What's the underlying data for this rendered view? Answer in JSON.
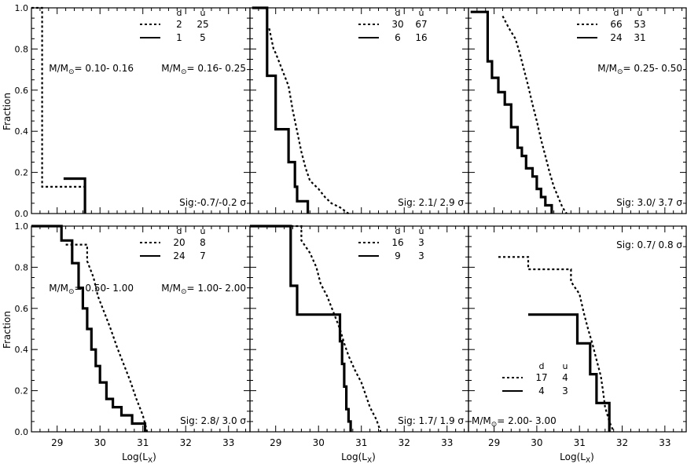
{
  "figure": {
    "ylabel": "Fraction",
    "xlabel": "Log(L",
    "xlabel_sub": "X",
    "xlabel_close": ")",
    "legend_header_d": "d",
    "legend_header_u": "u",
    "mass_prefix": "M/M",
    "sun_symbol": "⊙",
    "sigma_symbol": "σ",
    "x_ticks": [
      "29",
      "30",
      "31",
      "32",
      "33"
    ],
    "y_ticks": [
      "0.0",
      "0.2",
      "0.4",
      "0.6",
      "0.8",
      "1.0"
    ],
    "colors": {
      "line": "#000000",
      "background": "#ffffff"
    }
  },
  "chart_data": [
    {
      "type": "line",
      "panel": "top-left",
      "xlim": [
        28.4,
        33.5
      ],
      "ylim": [
        0,
        1
      ],
      "legend": [
        {
          "style": "dotted",
          "d": "2",
          "u": "25"
        },
        {
          "style": "solid",
          "d": "1",
          "u": "5"
        }
      ],
      "mass_range": "= 0.10- 0.16",
      "sig_text": "Sig:-0.7/-0.2",
      "series": [
        {
          "name": "dotted",
          "x": [
            28.4,
            28.65,
            28.65,
            29.65
          ],
          "y": [
            1.0,
            1.0,
            0.13,
            0.13
          ]
        },
        {
          "name": "solid",
          "x": [
            29.15,
            29.65,
            29.65
          ],
          "y": [
            0.17,
            0.17,
            0.0
          ]
        }
      ]
    },
    {
      "type": "line",
      "panel": "top-middle",
      "xlim": [
        28.4,
        33.5
      ],
      "ylim": [
        0,
        1
      ],
      "legend": [
        {
          "style": "dotted",
          "d": "30",
          "u": "67"
        },
        {
          "style": "solid",
          "d": "6",
          "u": "16"
        }
      ],
      "mass_range": "= 0.16- 0.25",
      "sig_text": "Sig: 2.1/ 2.9",
      "series": [
        {
          "name": "dotted",
          "x": [
            28.85,
            28.95,
            29.0,
            29.15,
            29.3,
            29.4,
            29.5,
            29.6,
            29.7,
            29.8,
            30.0,
            30.15,
            30.3,
            30.5,
            30.7
          ],
          "y": [
            0.9,
            0.8,
            0.78,
            0.7,
            0.62,
            0.5,
            0.4,
            0.3,
            0.22,
            0.16,
            0.12,
            0.08,
            0.05,
            0.03,
            0.0
          ]
        },
        {
          "name": "solid",
          "x": [
            28.45,
            28.8,
            28.8,
            29.0,
            29.0,
            29.3,
            29.3,
            29.45,
            29.45,
            29.5,
            29.5,
            29.75,
            29.75
          ],
          "y": [
            1.0,
            1.0,
            0.67,
            0.67,
            0.41,
            0.41,
            0.25,
            0.25,
            0.13,
            0.13,
            0.06,
            0.06,
            0.0
          ]
        }
      ]
    },
    {
      "type": "line",
      "panel": "top-right",
      "xlim": [
        28.4,
        33.5
      ],
      "ylim": [
        0,
        1
      ],
      "legend": [
        {
          "style": "dotted",
          "d": "66",
          "u": "53"
        },
        {
          "style": "solid",
          "d": "24",
          "u": "31"
        }
      ],
      "mass_range": "= 0.25- 0.50",
      "sig_text": "Sig: 3.0/ 3.7",
      "series": [
        {
          "name": "dotted",
          "x": [
            29.2,
            29.35,
            29.5,
            29.6,
            29.7,
            29.8,
            29.9,
            30.0,
            30.1,
            30.2,
            30.3,
            30.4,
            30.5,
            30.6,
            30.7
          ],
          "y": [
            0.96,
            0.9,
            0.85,
            0.78,
            0.7,
            0.62,
            0.53,
            0.45,
            0.36,
            0.28,
            0.2,
            0.13,
            0.08,
            0.03,
            0.0
          ]
        },
        {
          "name": "solid",
          "x": [
            28.45,
            28.85,
            28.85,
            28.95,
            28.95,
            29.1,
            29.1,
            29.25,
            29.25,
            29.4,
            29.4,
            29.55,
            29.55,
            29.65,
            29.65,
            29.75,
            29.75,
            29.9,
            29.9,
            30.0,
            30.0,
            30.1,
            30.1,
            30.2,
            30.2,
            30.35,
            30.35
          ],
          "y": [
            0.98,
            0.98,
            0.74,
            0.74,
            0.66,
            0.66,
            0.59,
            0.59,
            0.53,
            0.53,
            0.42,
            0.42,
            0.32,
            0.32,
            0.28,
            0.28,
            0.22,
            0.22,
            0.18,
            0.18,
            0.12,
            0.12,
            0.08,
            0.08,
            0.04,
            0.04,
            0.0
          ]
        }
      ]
    },
    {
      "type": "line",
      "panel": "bottom-left",
      "xlim": [
        28.4,
        33.5
      ],
      "ylim": [
        0,
        1
      ],
      "legend": [
        {
          "style": "dotted",
          "d": "20",
          "u": "8"
        },
        {
          "style": "solid",
          "d": "24",
          "u": "7"
        }
      ],
      "mass_range": "= 0.50- 1.00",
      "sig_text": "Sig: 2.8/ 3.0",
      "series": [
        {
          "name": "dotted",
          "x": [
            29.2,
            29.7,
            29.7,
            29.85,
            29.95,
            30.1,
            30.25,
            30.4,
            30.55,
            30.7,
            30.85,
            31.0,
            31.1
          ],
          "y": [
            0.91,
            0.91,
            0.83,
            0.75,
            0.66,
            0.58,
            0.5,
            0.41,
            0.33,
            0.25,
            0.16,
            0.08,
            0.0
          ]
        },
        {
          "name": "solid",
          "x": [
            28.4,
            29.1,
            29.1,
            29.35,
            29.35,
            29.5,
            29.5,
            29.6,
            29.6,
            29.7,
            29.7,
            29.8,
            29.8,
            29.9,
            29.9,
            30.0,
            30.0,
            30.15,
            30.15,
            30.3,
            30.3,
            30.5,
            30.5,
            30.75,
            30.75,
            31.05,
            31.05
          ],
          "y": [
            1.0,
            1.0,
            0.93,
            0.93,
            0.82,
            0.82,
            0.7,
            0.7,
            0.6,
            0.6,
            0.5,
            0.5,
            0.4,
            0.4,
            0.32,
            0.32,
            0.24,
            0.24,
            0.16,
            0.16,
            0.12,
            0.12,
            0.08,
            0.08,
            0.04,
            0.04,
            0.0
          ]
        }
      ]
    },
    {
      "type": "line",
      "panel": "bottom-middle",
      "xlim": [
        28.4,
        33.5
      ],
      "ylim": [
        0,
        1
      ],
      "legend": [
        {
          "style": "dotted",
          "d": "16",
          "u": "3"
        },
        {
          "style": "solid",
          "d": "9",
          "u": "3"
        }
      ],
      "mass_range": "= 1.00- 2.00",
      "sig_text": "Sig: 1.7/ 1.9",
      "series": [
        {
          "name": "dotted",
          "x": [
            29.25,
            29.6,
            29.6,
            29.8,
            29.95,
            30.05,
            30.2,
            30.35,
            30.5,
            30.6,
            30.7,
            30.85,
            31.0,
            31.1,
            31.2,
            31.35,
            31.45
          ],
          "y": [
            1.0,
            1.0,
            0.93,
            0.87,
            0.8,
            0.72,
            0.66,
            0.58,
            0.5,
            0.43,
            0.37,
            0.3,
            0.24,
            0.18,
            0.12,
            0.06,
            0.0
          ]
        },
        {
          "name": "solid",
          "x": [
            28.4,
            29.35,
            29.35,
            29.5,
            29.5,
            30.5,
            30.5,
            30.55,
            30.55,
            30.6,
            30.6,
            30.65,
            30.65,
            30.7,
            30.7,
            30.75,
            30.75
          ],
          "y": [
            1.0,
            1.0,
            0.71,
            0.71,
            0.57,
            0.57,
            0.44,
            0.44,
            0.33,
            0.33,
            0.22,
            0.22,
            0.11,
            0.11,
            0.05,
            0.05,
            0.0
          ]
        }
      ]
    },
    {
      "type": "line",
      "panel": "bottom-right",
      "xlim": [
        28.4,
        33.5
      ],
      "ylim": [
        0,
        1
      ],
      "legend": [
        {
          "style": "dotted",
          "d": "17",
          "u": "4"
        },
        {
          "style": "solid",
          "d": "4",
          "u": "3"
        }
      ],
      "mass_range": "= 2.00- 3.00",
      "sig_text": "Sig: 0.7/ 0.8",
      "series": [
        {
          "name": "dotted",
          "x": [
            29.1,
            29.8,
            29.8,
            30.8,
            30.8,
            31.0,
            31.1,
            31.2,
            31.3,
            31.4,
            31.5,
            31.55,
            31.6,
            31.7,
            31.8
          ],
          "y": [
            0.85,
            0.85,
            0.79,
            0.79,
            0.73,
            0.67,
            0.58,
            0.5,
            0.43,
            0.35,
            0.27,
            0.2,
            0.12,
            0.05,
            0.0
          ]
        },
        {
          "name": "solid",
          "x": [
            29.8,
            30.95,
            30.95,
            31.25,
            31.25,
            31.4,
            31.4,
            31.7,
            31.7
          ],
          "y": [
            0.57,
            0.57,
            0.43,
            0.43,
            0.28,
            0.28,
            0.14,
            0.14,
            0.0
          ]
        }
      ]
    }
  ]
}
